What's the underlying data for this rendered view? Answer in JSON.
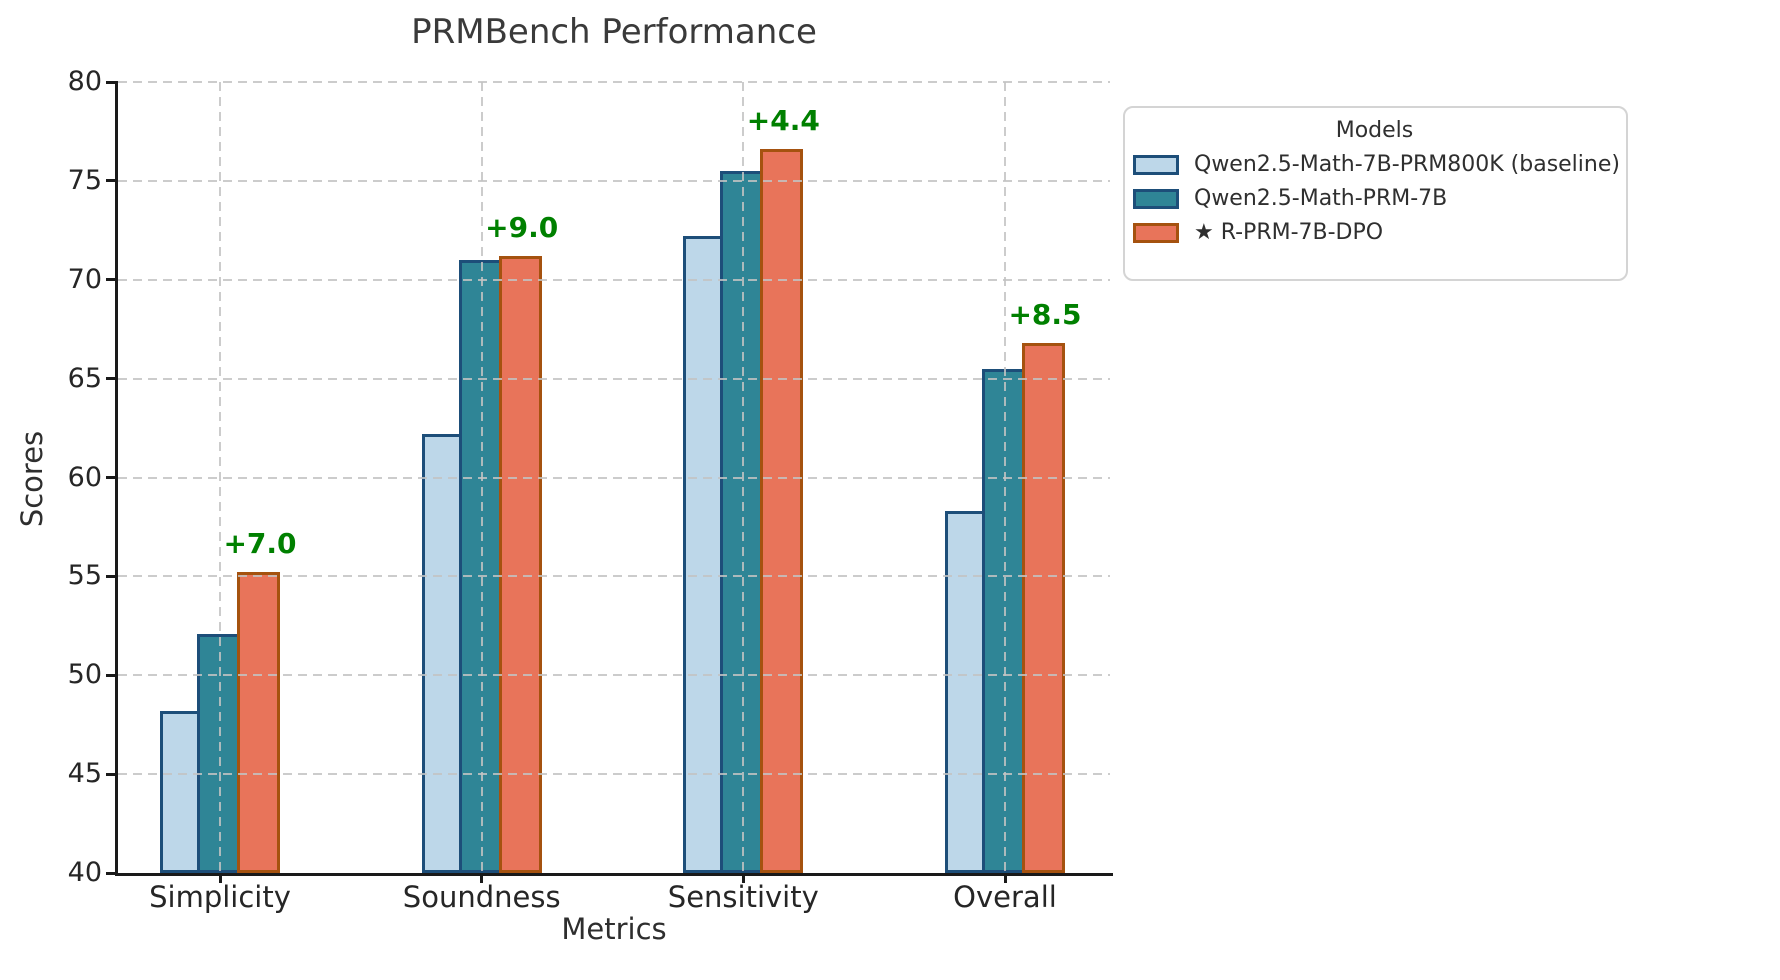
{
  "chart_data": {
    "type": "bar",
    "title": "PRMBench Performance",
    "xlabel": "Metrics",
    "ylabel": "Scores",
    "ylim": [
      40,
      80
    ],
    "yticks": [
      40,
      45,
      50,
      55,
      60,
      65,
      70,
      75,
      80
    ],
    "grid": "dashed, horizontal and vertical, drawn over bars",
    "categories": [
      "Simplicity",
      "Soundness",
      "Sensitivity",
      "Overall"
    ],
    "series": [
      {
        "name": "Qwen2.5-Math-7B-PRM800K (baseline)",
        "fill": "#bdd7e9",
        "edge": "#1d4e79",
        "values": [
          48.2,
          62.2,
          72.2,
          58.3
        ]
      },
      {
        "name": "Qwen2.5-Math-PRM-7B",
        "fill": "#2f8596",
        "edge": "#1d4e79",
        "values": [
          52.1,
          71.0,
          75.5,
          65.5
        ]
      },
      {
        "name": "★ R-PRM-7B-DPO",
        "fill": "#e8745a",
        "edge": "#a5520f",
        "values": [
          55.2,
          71.2,
          76.6,
          66.8
        ]
      }
    ],
    "annotations": [
      {
        "category_index": 0,
        "text": "+7.0"
      },
      {
        "category_index": 1,
        "text": "+9.0"
      },
      {
        "category_index": 2,
        "text": "+4.4"
      },
      {
        "category_index": 3,
        "text": "+8.5"
      }
    ],
    "annotation_color": "#008000",
    "legend": {
      "title": "Models",
      "position": "upper right, outside plot"
    }
  }
}
